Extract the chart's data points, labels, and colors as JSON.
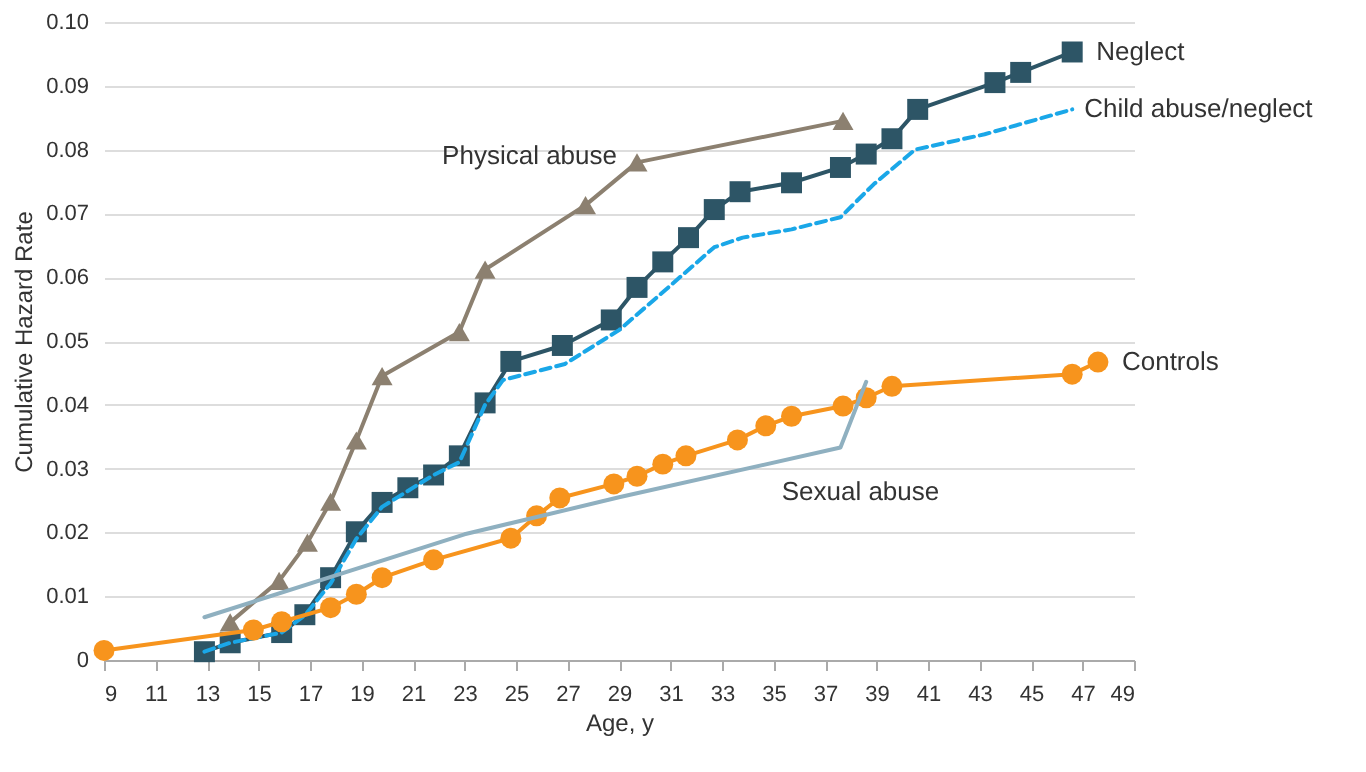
{
  "chart_data": {
    "type": "line",
    "xlabel": "Age, y",
    "ylabel": "Cumulative Hazard Rate",
    "xlim": [
      9,
      49
    ],
    "xticks": [
      9,
      11,
      13,
      15,
      17,
      19,
      21,
      23,
      25,
      27,
      29,
      31,
      33,
      35,
      37,
      39,
      41,
      43,
      45,
      47,
      49
    ],
    "ylim": [
      0,
      0.1
    ],
    "yticks": [
      0,
      0.01,
      0.02,
      0.03,
      0.04,
      0.05,
      0.06,
      0.07,
      0.08,
      0.09,
      {
        "value": 0.1,
        "label": "0.10"
      }
    ],
    "grid": "y",
    "legend": false,
    "series": [
      {
        "name": "Physical abuse",
        "color": "#8c8070",
        "marker": "triangle",
        "line_style": "solid",
        "x": [
          13.9,
          15.8,
          16.9,
          17.8,
          18.8,
          19.8,
          22.8,
          23.8,
          27.7,
          29.7,
          37.7
        ],
        "values": [
          0.0059,
          0.0124,
          0.0184,
          0.0248,
          0.0344,
          0.0445,
          0.0514,
          0.0612,
          0.0713,
          0.078,
          0.0845
        ]
      },
      {
        "name": "Neglect",
        "color": "#2d5566",
        "marker": "square",
        "line_style": "solid",
        "x": [
          12.9,
          13.9,
          15.9,
          16.8,
          17.8,
          18.8,
          19.8,
          20.8,
          21.8,
          22.8,
          23.8,
          24.8,
          26.8,
          28.7,
          29.7,
          30.7,
          31.7,
          32.7,
          33.7,
          35.7,
          37.6,
          38.6,
          39.6,
          40.6,
          43.6,
          44.6,
          46.6
        ],
        "values": [
          0.0013,
          0.0027,
          0.0043,
          0.0071,
          0.0129,
          0.0201,
          0.0247,
          0.027,
          0.029,
          0.032,
          0.0403,
          0.0468,
          0.0493,
          0.0533,
          0.0584,
          0.0624,
          0.0662,
          0.0706,
          0.0734,
          0.0748,
          0.0772,
          0.0793,
          0.0817,
          0.0863,
          0.0905,
          0.0921,
          0.0953
        ]
      },
      {
        "name": "Child abuse/neglect",
        "color": "#1aa7e8",
        "marker": "none",
        "line_style": "dashed",
        "x": [
          12.9,
          13.9,
          15.9,
          16.8,
          17.8,
          18.8,
          19.8,
          21.8,
          22.8,
          23.8,
          24.5,
          26.9,
          29.0,
          30.8,
          32.7,
          33.8,
          35.7,
          37.6,
          38.9,
          40.5,
          43.2,
          46.6
        ],
        "values": [
          0.0013,
          0.0027,
          0.0043,
          0.007,
          0.012,
          0.019,
          0.024,
          0.029,
          0.031,
          0.04,
          0.0439,
          0.0464,
          0.0517,
          0.058,
          0.0647,
          0.0662,
          0.0675,
          0.0694,
          0.0746,
          0.08,
          0.0824,
          0.0863
        ]
      },
      {
        "name": "Controls",
        "color": "#f7941d",
        "marker": "circle",
        "line_style": "solid",
        "x": [
          9.0,
          14.8,
          15.9,
          17.8,
          18.8,
          19.8,
          21.8,
          24.8,
          25.8,
          26.7,
          28.8,
          29.7,
          30.7,
          31.6,
          33.6,
          34.7,
          35.7,
          37.7,
          38.6,
          39.6,
          46.6,
          47.6
        ],
        "values": [
          0.0015,
          0.0047,
          0.006,
          0.0082,
          0.0103,
          0.0129,
          0.0157,
          0.0191,
          0.0226,
          0.0254,
          0.0276,
          0.0288,
          0.0307,
          0.032,
          0.0345,
          0.0367,
          0.0382,
          0.0398,
          0.0411,
          0.0429,
          0.0448,
          0.0467
        ]
      },
      {
        "name": "Sexual abuse",
        "color": "#8fb0c0",
        "marker": "none",
        "line_style": "solid",
        "x": [
          12.9,
          23.0,
          29.0,
          37.6,
          38.6
        ],
        "values": [
          0.0067,
          0.0197,
          0.0255,
          0.0333,
          0.0436
        ]
      }
    ]
  }
}
